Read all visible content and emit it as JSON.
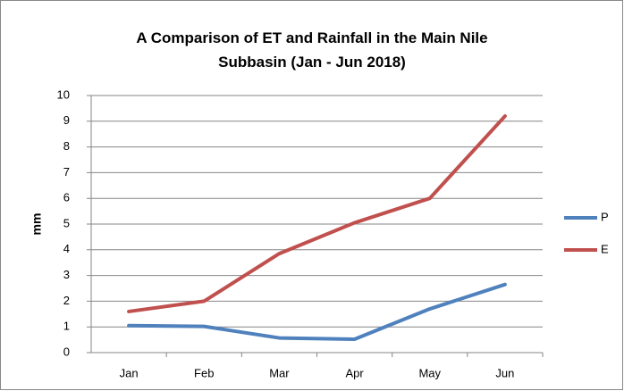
{
  "chart_data": {
    "type": "line",
    "title": "A Comparison of ET and Rainfall in the Main Nile Subbasin (Jan - Jun 2018)",
    "y_label": "mm",
    "categories": [
      "Jan",
      "Feb",
      "Mar",
      "Apr",
      "May",
      "Jun"
    ],
    "series": [
      {
        "name": "P",
        "color": "#4f81bd",
        "values": [
          1.05,
          1.02,
          0.57,
          0.52,
          1.7,
          2.65
        ]
      },
      {
        "name": "E",
        "color": "#c0504d",
        "values": [
          1.6,
          2.0,
          3.85,
          5.05,
          6.0,
          9.2
        ]
      }
    ],
    "ylim": [
      0,
      10
    ],
    "yticks": [
      0,
      1,
      2,
      3,
      4,
      5,
      6,
      7,
      8,
      9,
      10
    ],
    "grid": true,
    "legend": "right"
  }
}
